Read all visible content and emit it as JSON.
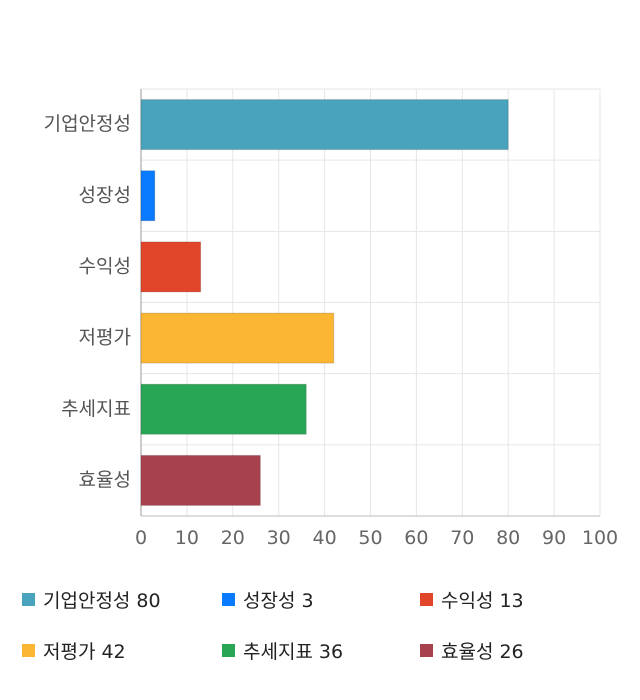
{
  "chart_data": {
    "type": "bar",
    "orientation": "horizontal",
    "categories": [
      "기업안정성",
      "성장성",
      "수익성",
      "저평가",
      "추세지표",
      "효율성"
    ],
    "values": [
      80,
      3,
      13,
      42,
      36,
      26
    ],
    "colors": [
      "#4aa3bc",
      "#0a7bff",
      "#e2462a",
      "#fbb634",
      "#29a655",
      "#a8414e"
    ],
    "xlim": [
      0,
      100
    ],
    "xticks": [
      "0",
      "10",
      "20",
      "30",
      "40",
      "50",
      "60",
      "70",
      "80",
      "90",
      "100"
    ],
    "grid": true,
    "legend_position": "bottom"
  },
  "legend": [
    {
      "label": "기업안정성",
      "value": "80"
    },
    {
      "label": "성장성",
      "value": "3"
    },
    {
      "label": "수익성",
      "value": "13"
    },
    {
      "label": "저평가",
      "value": "42"
    },
    {
      "label": "추세지표",
      "value": "36"
    },
    {
      "label": "효율성",
      "value": "26"
    }
  ]
}
